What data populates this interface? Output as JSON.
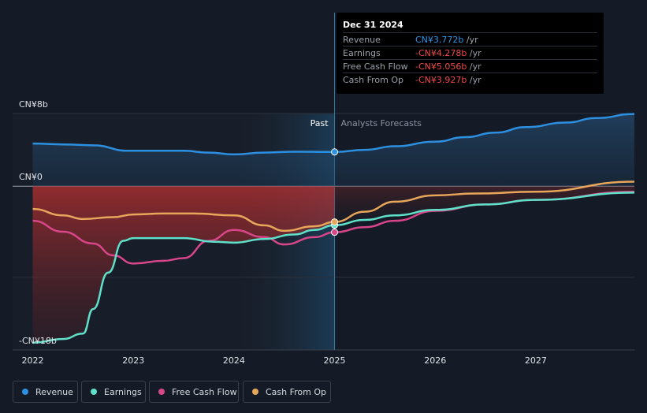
{
  "tooltip": {
    "date": "Dec 31 2024",
    "rows": [
      {
        "label": "Revenue",
        "value": "CN¥3.772b",
        "unit": "/yr",
        "color": "#2b95e5"
      },
      {
        "label": "Earnings",
        "value": "-CN¥4.278b",
        "unit": "/yr",
        "color": "#f04848"
      },
      {
        "label": "Free Cash Flow",
        "value": "-CN¥5.056b",
        "unit": "/yr",
        "color": "#f04848"
      },
      {
        "label": "Cash From Op",
        "value": "-CN¥3.927b",
        "unit": "/yr",
        "color": "#f04848"
      }
    ]
  },
  "labels": {
    "past": "Past",
    "forecast": "Analysts Forecasts"
  },
  "legend": [
    {
      "label": "Revenue",
      "color": "#2d8fe0"
    },
    {
      "label": "Earnings",
      "color": "#5fe0c8"
    },
    {
      "label": "Free Cash Flow",
      "color": "#d8468a"
    },
    {
      "label": "Cash From Op",
      "color": "#e8a65a"
    }
  ],
  "chart_data": {
    "type": "line",
    "y_tick_labels": [
      "CN¥8b",
      "CN¥0",
      "-CN¥18b"
    ],
    "y_ticks": [
      8,
      0,
      -18
    ],
    "ylim": [
      -18,
      8
    ],
    "x_ticks": [
      "2022",
      "2023",
      "2024",
      "2025",
      "2026",
      "2027"
    ],
    "xlim": [
      2021.8,
      2027.98
    ],
    "past_end": 2025.0,
    "series": [
      {
        "name": "Revenue",
        "color": "#2d8fe0",
        "x": [
          2022.0,
          2022.3,
          2022.6,
          2022.95,
          2023.3,
          2023.5,
          2023.75,
          2024.0,
          2024.3,
          2024.6,
          2025.0,
          2025.3,
          2025.6,
          2026.0,
          2026.3,
          2026.6,
          2026.9,
          2027.3,
          2027.6,
          2027.98
        ],
        "y": [
          4.7,
          4.6,
          4.5,
          3.9,
          3.9,
          3.9,
          3.7,
          3.5,
          3.7,
          3.8,
          3.772,
          4.0,
          4.4,
          4.9,
          5.4,
          5.9,
          6.5,
          7.0,
          7.5,
          7.95
        ]
      },
      {
        "name": "Earnings",
        "color": "#5fe0c8",
        "x": [
          2022.0,
          2022.3,
          2022.5,
          2022.6,
          2022.75,
          2022.9,
          2023.0,
          2023.2,
          2023.5,
          2023.8,
          2024.0,
          2024.3,
          2024.6,
          2024.8,
          2025.0,
          2025.3,
          2025.6,
          2026.0,
          2026.5,
          2027.0,
          2027.98
        ],
        "y": [
          -17.2,
          -16.8,
          -16.2,
          -13.5,
          -9.5,
          -6.0,
          -5.7,
          -5.7,
          -5.7,
          -6.1,
          -6.2,
          -5.8,
          -5.3,
          -4.8,
          -4.278,
          -3.7,
          -3.2,
          -2.6,
          -2.0,
          -1.5,
          -0.7
        ]
      },
      {
        "name": "Free Cash Flow",
        "color": "#d8468a",
        "x": [
          2022.0,
          2022.3,
          2022.6,
          2022.8,
          2023.0,
          2023.3,
          2023.5,
          2023.75,
          2024.0,
          2024.3,
          2024.5,
          2024.8,
          2025.0,
          2025.3,
          2025.6,
          2026.0,
          2026.5,
          2027.0,
          2027.98
        ],
        "y": [
          -3.8,
          -5.0,
          -6.3,
          -7.6,
          -8.5,
          -8.2,
          -7.9,
          -6.0,
          -4.8,
          -5.6,
          -6.4,
          -5.6,
          -5.056,
          -4.5,
          -3.8,
          -2.7,
          -2.0,
          -1.5,
          -0.6
        ]
      },
      {
        "name": "Cash From Op",
        "color": "#e8a65a",
        "x": [
          2022.0,
          2022.3,
          2022.5,
          2022.8,
          2023.0,
          2023.3,
          2023.6,
          2024.0,
          2024.3,
          2024.5,
          2024.8,
          2025.0,
          2025.3,
          2025.6,
          2026.0,
          2026.4,
          2027.0,
          2027.98
        ],
        "y": [
          -2.5,
          -3.2,
          -3.6,
          -3.4,
          -3.1,
          -3.0,
          -3.0,
          -3.2,
          -4.3,
          -4.9,
          -4.4,
          -3.927,
          -2.8,
          -1.7,
          -1.0,
          -0.8,
          -0.6,
          0.5
        ]
      }
    ],
    "markers": {
      "x": 2025.0,
      "points": [
        {
          "series": "Revenue",
          "y": 3.772
        },
        {
          "series": "Earnings",
          "y": -4.278
        },
        {
          "series": "Free Cash Flow",
          "y": -5.056
        },
        {
          "series": "Cash From Op",
          "y": -3.927
        }
      ]
    }
  }
}
